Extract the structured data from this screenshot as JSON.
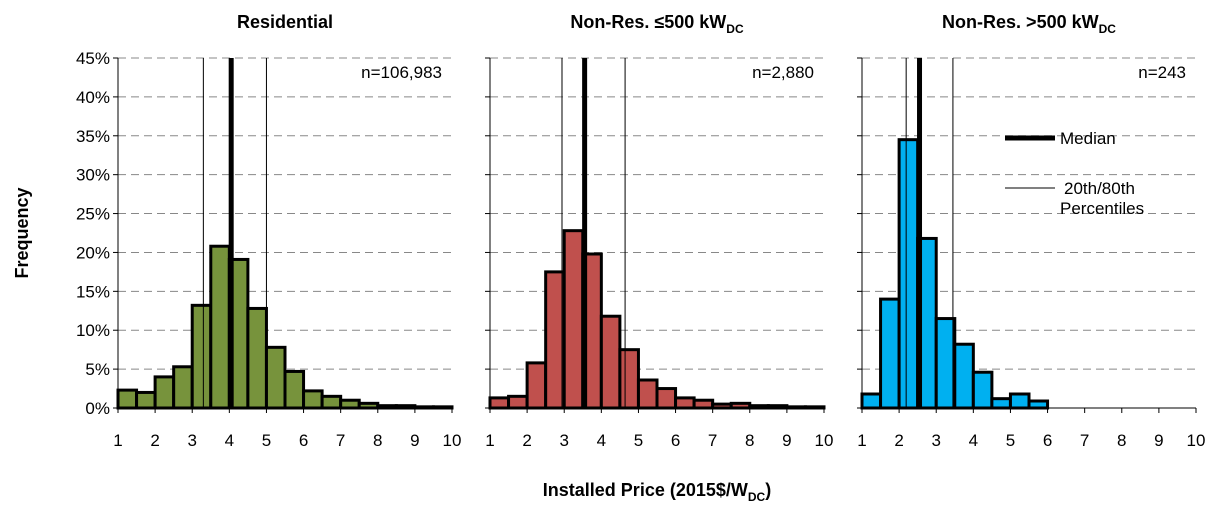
{
  "chart_data": [
    {
      "type": "histogram",
      "title": "Residential",
      "color": "#77933c",
      "bins": [
        1,
        1.5,
        2,
        2.5,
        3,
        3.5,
        4,
        4.5,
        5,
        5.5,
        6,
        6.5,
        7,
        7.5,
        8,
        8.5,
        9,
        9.5,
        10
      ],
      "values": [
        2.3,
        2.0,
        4.0,
        5.3,
        13.2,
        20.8,
        19.1,
        12.8,
        7.8,
        4.7,
        2.2,
        1.5,
        1.0,
        0.6,
        0.3,
        0.3,
        0.15,
        0.15
      ],
      "median": 4.05,
      "p20": 3.3,
      "p80": 5.0,
      "annotation": "n=106,983",
      "xlim": [
        1,
        10
      ],
      "xticks": [
        1,
        2,
        3,
        4,
        5,
        6,
        7,
        8,
        9,
        10
      ],
      "ylim": [
        0,
        45
      ],
      "yticks": [
        {
          "value": 0,
          "label": "0%"
        },
        {
          "value": 5,
          "label": "5%"
        },
        {
          "value": 10,
          "label": "10%"
        },
        {
          "value": 15,
          "label": "15%"
        },
        {
          "value": 20,
          "label": "20%"
        },
        {
          "value": 25,
          "label": "25%"
        },
        {
          "value": 30,
          "label": "30%"
        },
        {
          "value": 35,
          "label": "35%"
        },
        {
          "value": 40,
          "label": "40%"
        },
        {
          "value": 45,
          "label": "45%"
        }
      ],
      "ylabel": "Frequency",
      "grid": true
    },
    {
      "type": "histogram",
      "title": "Non-Res. ≤500 kW",
      "title_subscript": "DC",
      "color": "#c0504d",
      "bins": [
        1,
        1.5,
        2,
        2.5,
        3,
        3.5,
        4,
        4.5,
        5,
        5.5,
        6,
        6.5,
        7,
        7.5,
        8,
        8.5,
        9,
        9.5,
        10
      ],
      "values": [
        1.3,
        1.5,
        5.8,
        17.5,
        22.8,
        19.8,
        11.8,
        7.5,
        3.6,
        2.5,
        1.3,
        1.0,
        0.5,
        0.6,
        0.3,
        0.3,
        0.15,
        0.15
      ],
      "median": 3.55,
      "p20": 2.94,
      "p80": 4.64,
      "annotation": "n=2,880",
      "xlim": [
        1,
        10
      ],
      "xticks": [
        1,
        2,
        3,
        4,
        5,
        6,
        7,
        8,
        9,
        10
      ],
      "ylim": [
        0,
        45
      ],
      "yticks": [
        0,
        5,
        10,
        15,
        20,
        25,
        30,
        35,
        40,
        45
      ],
      "xlabel": [
        "Installed Price (2015$/W",
        "DC",
        ")"
      ],
      "grid": true
    },
    {
      "type": "histogram",
      "title": "Non-Res. >500 kW",
      "title_subscript": "DC",
      "color": "#00b0f0",
      "bins": [
        1,
        1.5,
        2,
        2.5,
        3,
        3.5,
        4,
        4.5,
        5,
        5.5,
        6
      ],
      "values": [
        1.8,
        14.0,
        34.5,
        21.8,
        11.5,
        8.2,
        4.6,
        1.2,
        1.8,
        0.9
      ],
      "median": 2.55,
      "p20": 2.19,
      "p80": 3.45,
      "annotation": "n=243",
      "xlim": [
        1,
        10
      ],
      "xticks": [
        1,
        2,
        3,
        4,
        5,
        6,
        7,
        8,
        9,
        10
      ],
      "ylim": [
        0,
        45
      ],
      "yticks": [
        0,
        5,
        10,
        15,
        20,
        25,
        30,
        35,
        40,
        45
      ],
      "legend": {
        "median": "Median",
        "percentiles": [
          "20th/80th",
          "Percentiles"
        ]
      },
      "grid": true
    }
  ]
}
